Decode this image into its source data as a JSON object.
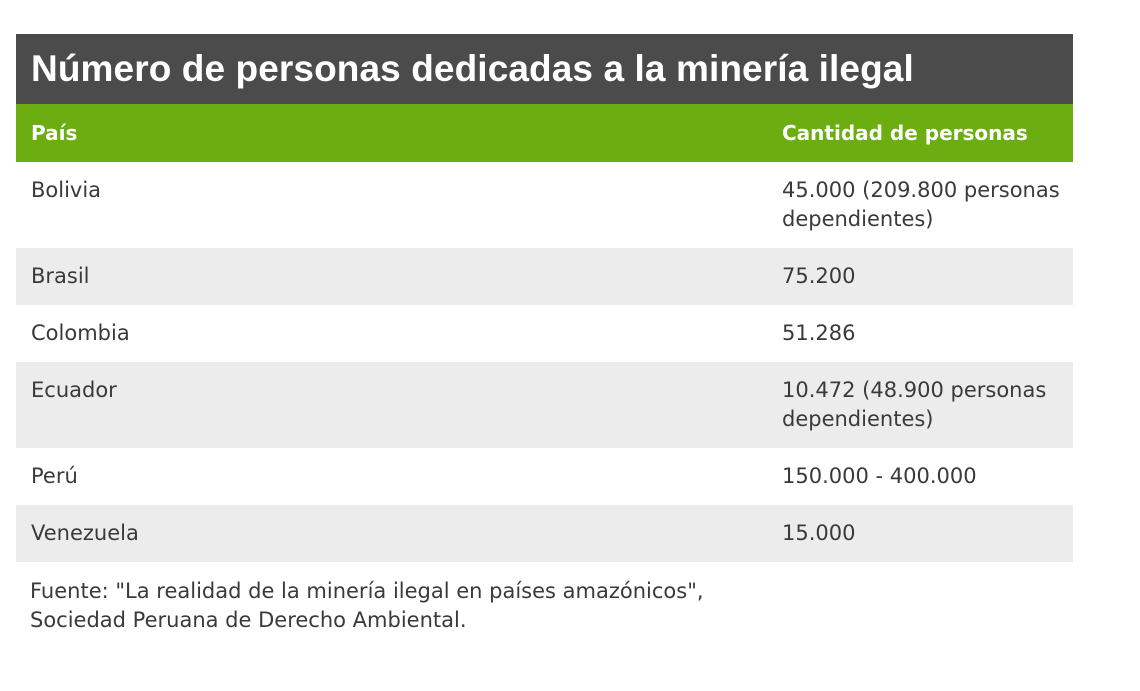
{
  "chart_data": {
    "type": "table",
    "title": "Número de personas dedicadas a la minería ilegal",
    "columns": [
      "País",
      "Cantidad de personas"
    ],
    "rows": [
      {
        "country": "Bolivia",
        "amount": "45.000 (209.800 personas dependientes)"
      },
      {
        "country": "Brasil",
        "amount": "75.200"
      },
      {
        "country": "Colombia",
        "amount": "51.286"
      },
      {
        "country": "Ecuador",
        "amount": "10.472 (48.900 personas dependientes)"
      },
      {
        "country": "Perú",
        "amount": "150.000 - 400.000"
      },
      {
        "country": "Venezuela",
        "amount": "15.000"
      }
    ],
    "source": "Fuente: \"La realidad de la minería ilegal en países amazónicos\", Sociedad Peruana de Derecho Ambiental.",
    "colors": {
      "title_bg": "#4b4b4b",
      "header_bg": "#6cad12",
      "alt_row_bg": "#ececec"
    }
  }
}
